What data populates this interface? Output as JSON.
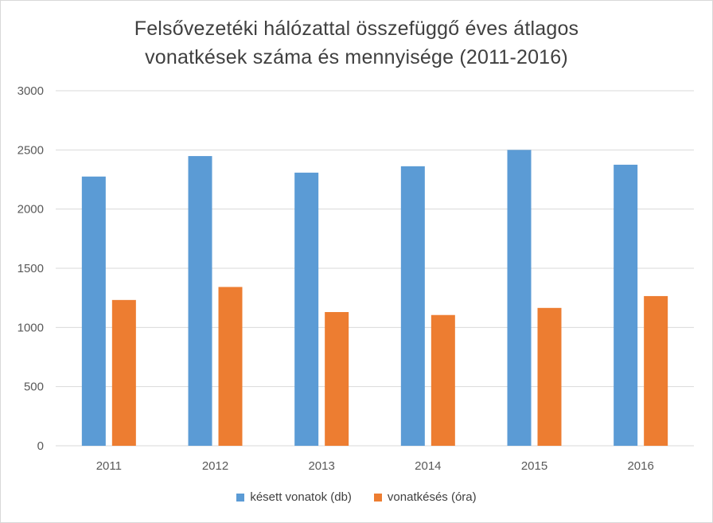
{
  "chart_data": {
    "type": "bar",
    "title_lines": [
      "Felsővezetéki hálózattal összefüggő éves átlagos",
      "vonatkések száma és mennyisége (2011-2016)"
    ],
    "categories": [
      "2011",
      "2012",
      "2013",
      "2014",
      "2015",
      "2016"
    ],
    "series": [
      {
        "name": "késett vonatok (db)",
        "color": "#5b9bd5",
        "values": [
          2275,
          2448,
          2308,
          2362,
          2500,
          2375
        ]
      },
      {
        "name": "vonatkésés (óra)",
        "color": "#ed7d31",
        "values": [
          1232,
          1342,
          1130,
          1105,
          1165,
          1265
        ]
      }
    ],
    "ylim": [
      0,
      3000
    ],
    "yticks": [
      "0",
      "500",
      "1000",
      "1500",
      "2000",
      "2500",
      "3000"
    ],
    "grid": true,
    "legend_position": "bottom"
  }
}
